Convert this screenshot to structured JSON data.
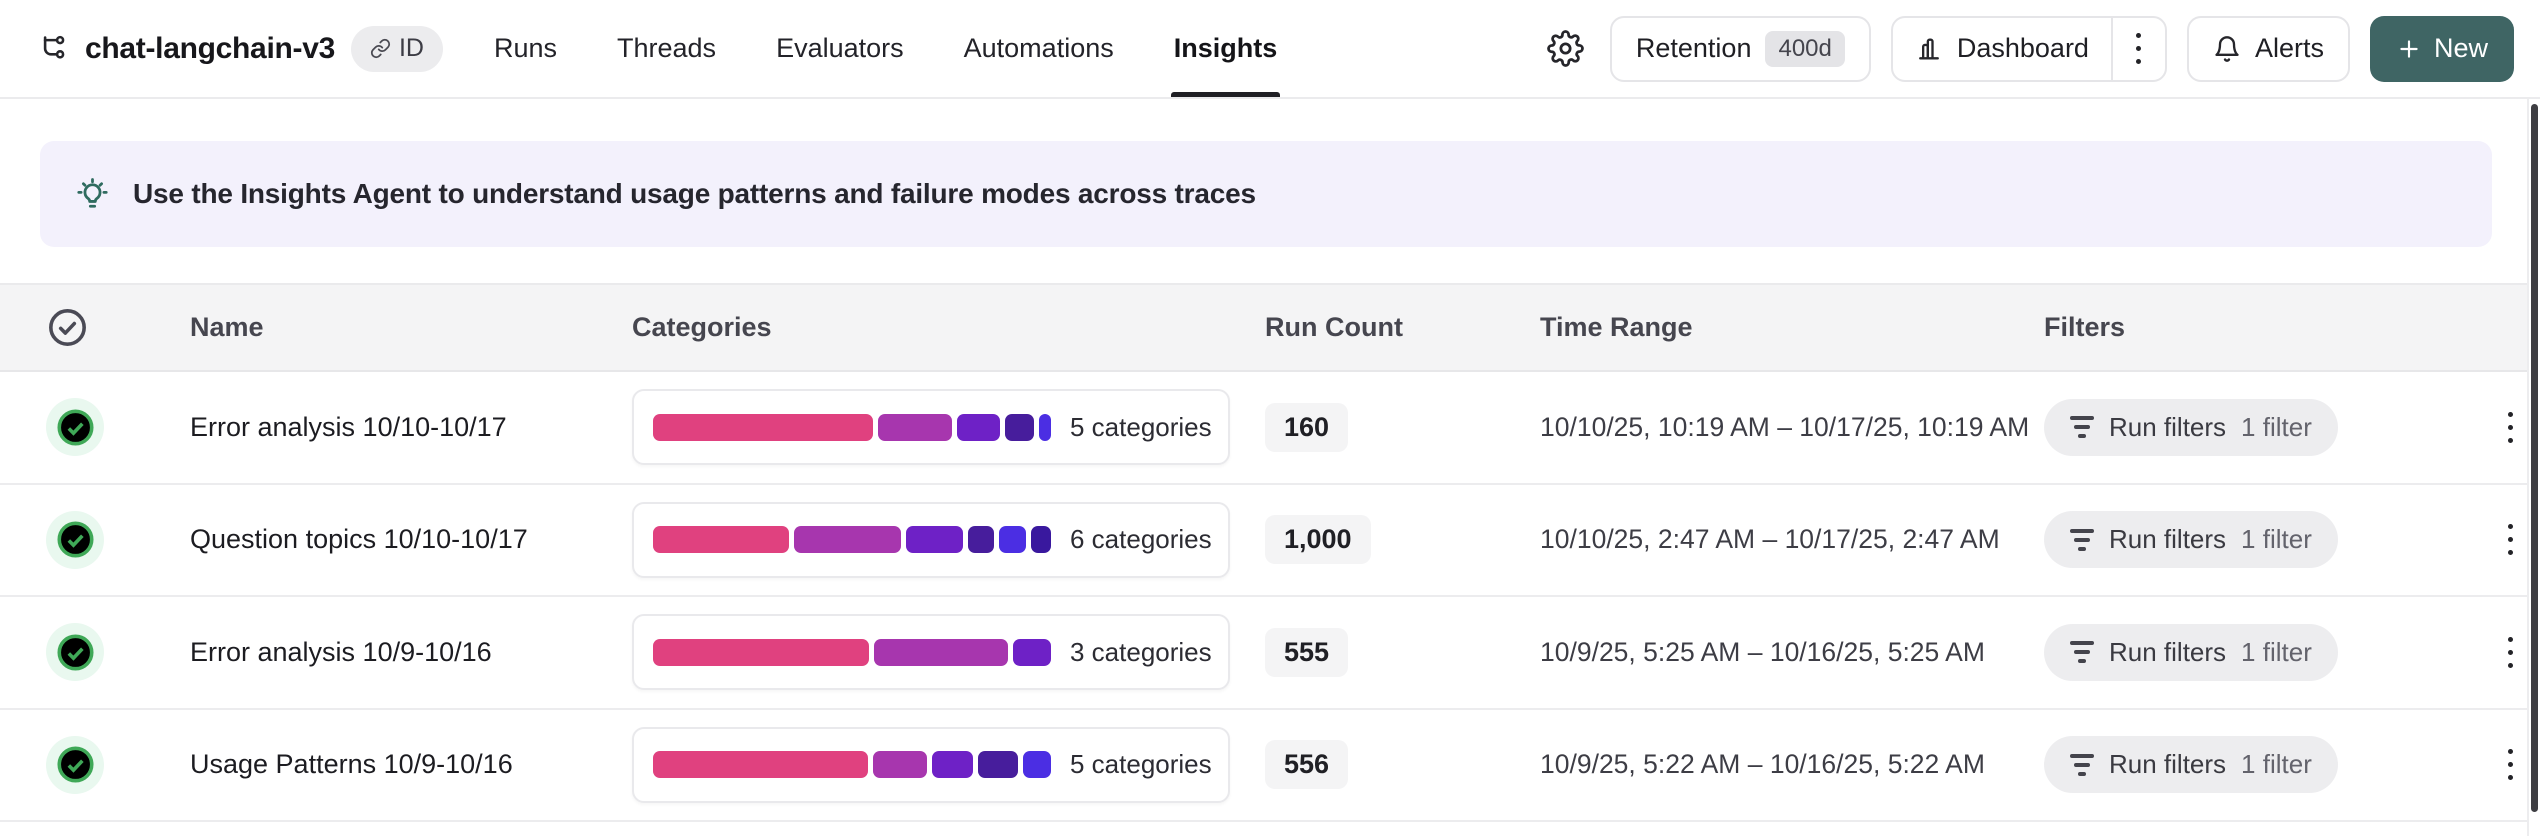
{
  "header": {
    "project": {
      "title": "chat-langchain-v3",
      "id_badge": "ID"
    },
    "tabs": [
      {
        "label": "Runs",
        "active": false
      },
      {
        "label": "Threads",
        "active": false
      },
      {
        "label": "Evaluators",
        "active": false
      },
      {
        "label": "Automations",
        "active": false
      },
      {
        "label": "Insights",
        "active": true
      }
    ],
    "actions": {
      "retention": {
        "label": "Retention",
        "badge": "400d"
      },
      "dashboard": {
        "label": "Dashboard"
      },
      "alerts": {
        "label": "Alerts"
      },
      "new": {
        "label": "New"
      }
    }
  },
  "banner": {
    "text": "Use the Insights Agent to understand usage patterns and failure modes across traces"
  },
  "insights_table": {
    "columns": {
      "name": "Name",
      "categories": "Categories",
      "run_count": "Run Count",
      "time_range": "Time Range",
      "filters": "Filters"
    },
    "rows": [
      {
        "name": "Error analysis 10/10-10/17",
        "categories_label": "5 categories",
        "run_count": "160",
        "time_range": "10/10/25, 10:19 AM – 10/17/25, 10:19 AM",
        "filters": {
          "label": "Run filters",
          "count": "1 filter"
        },
        "segments": [
          {
            "color": "#E0417F",
            "pct": 56.5
          },
          {
            "color": "#A736AE",
            "pct": 19
          },
          {
            "color": "#6E21C6",
            "pct": 11
          },
          {
            "color": "#471D9C",
            "pct": 7.5
          },
          {
            "color": "#4B2EE3",
            "pct": 3
          }
        ]
      },
      {
        "name": "Question topics 10/10-10/17",
        "categories_label": "6 categories",
        "run_count": "1,000",
        "time_range": "10/10/25, 2:47 AM – 10/17/25, 2:47 AM",
        "filters": {
          "label": "Run filters",
          "count": "1 filter"
        },
        "segments": [
          {
            "color": "#E0417F",
            "pct": 33.5
          },
          {
            "color": "#A736AE",
            "pct": 26.5
          },
          {
            "color": "#6E21C6",
            "pct": 14
          },
          {
            "color": "#471D9C",
            "pct": 6.5
          },
          {
            "color": "#4B2EE3",
            "pct": 6.5
          },
          {
            "color": "#39189E",
            "pct": 5
          }
        ]
      },
      {
        "name": "Error analysis 10/9-10/16",
        "categories_label": "3 categories",
        "run_count": "555",
        "time_range": "10/9/25, 5:25 AM – 10/16/25, 5:25 AM",
        "filters": {
          "label": "Run filters",
          "count": "1 filter"
        },
        "segments": [
          {
            "color": "#E0417F",
            "pct": 54
          },
          {
            "color": "#A736AE",
            "pct": 33.5
          },
          {
            "color": "#6E21C6",
            "pct": 9.5
          }
        ]
      },
      {
        "name": "Usage Patterns 10/9-10/16",
        "categories_label": "5 categories",
        "run_count": "556",
        "time_range": "10/9/25, 5:22 AM – 10/16/25, 5:22 AM",
        "filters": {
          "label": "Run filters",
          "count": "1 filter"
        },
        "segments": [
          {
            "color": "#E0417F",
            "pct": 54
          },
          {
            "color": "#A736AE",
            "pct": 13.5
          },
          {
            "color": "#6E21C6",
            "pct": 10.5
          },
          {
            "color": "#471D9C",
            "pct": 10
          },
          {
            "color": "#4B2EE3",
            "pct": 7
          }
        ]
      }
    ]
  },
  "colors": {
    "new_button_teal": "#3F6564",
    "banner_background": "#F3F1FC",
    "status_success_green": "#3FA857",
    "category_palette": [
      "#E0417F",
      "#A736AE",
      "#6E21C6",
      "#471D9C",
      "#4B2EE3",
      "#39189E"
    ]
  }
}
